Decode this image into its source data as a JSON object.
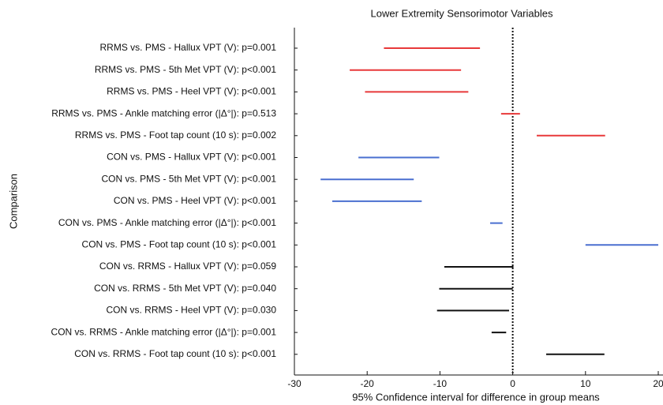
{
  "chart_data": {
    "type": "interval",
    "title": "Lower Extremity Sensorimotor Variables",
    "xlabel": "95% Confidence interval for difference in group means",
    "ylabel": "Comparison",
    "categories": [
      "RRMS vs. PMS - Hallux VPT (V): p=0.001",
      "RRMS vs. PMS - 5th Met VPT (V): p<0.001",
      "RRMS vs. PMS - Heel VPT (V): p<0.001",
      "RRMS vs. PMS - Ankle matching error (|Δ°|): p=0.513",
      "RRMS vs. PMS - Foot tap count (10 s): p=0.002",
      "CON vs. PMS - Hallux VPT (V): p<0.001",
      "CON vs. PMS - 5th Met VPT (V): p<0.001",
      "CON vs. PMS - Heel VPT (V): p<0.001",
      "CON vs. PMS - Ankle matching error (|Δ°|): p<0.001",
      "CON vs. PMS - Foot tap count (10 s): p<0.001",
      "CON vs. RRMS - Hallux VPT (V): p=0.059",
      "CON vs. RRMS - 5th Met VPT (V): p=0.040",
      "CON vs. RRMS - Heel VPT (V): p=0.030",
      "CON vs. RRMS - Ankle matching error (|Δ°|): p=0.001",
      "CON vs. RRMS - Foot tap count (10 s): p<0.001"
    ],
    "low": [
      -17.7,
      -22.4,
      -20.3,
      -1.6,
      3.3,
      -21.2,
      -26.4,
      -24.8,
      -3.1,
      10.0,
      -9.4,
      -10.1,
      -10.4,
      -2.9,
      4.6
    ],
    "high": [
      -4.5,
      -7.1,
      -6.1,
      1.0,
      12.7,
      -10.1,
      -13.6,
      -12.5,
      -1.4,
      20.0,
      0.1,
      0.0,
      -0.5,
      -0.9,
      12.6
    ],
    "colors": [
      "#e8393a",
      "#e8393a",
      "#e8393a",
      "#e8393a",
      "#e8393a",
      "#4a6fd0",
      "#4a6fd0",
      "#4a6fd0",
      "#4a6fd0",
      "#4a6fd0",
      "#111111",
      "#111111",
      "#111111",
      "#111111",
      "#111111"
    ],
    "reference_line": 0,
    "xlim": [
      -30,
      20
    ],
    "xticks": [
      -30,
      -20,
      -10,
      0,
      10,
      20
    ]
  }
}
